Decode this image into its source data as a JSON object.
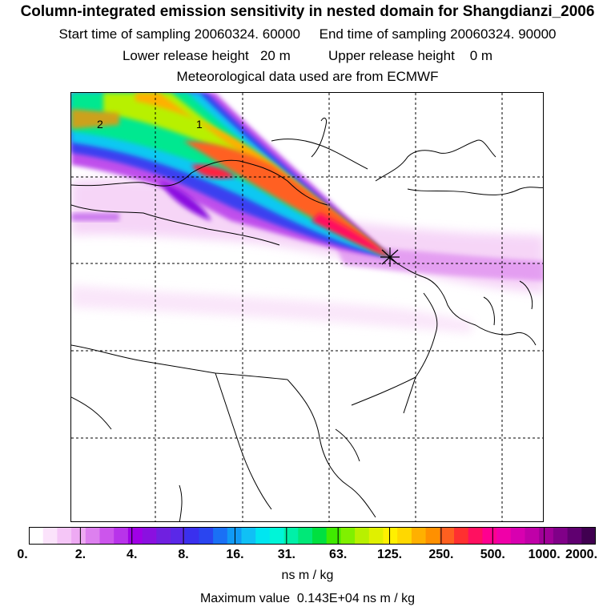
{
  "title": "Column-integrated emission sensitivity in nested domain for Shangdianzi_2006",
  "sampling": {
    "start_label": "Start time of sampling",
    "start_value": "20060324. 60000",
    "end_label": "End time of sampling",
    "end_value": "20060324. 90000"
  },
  "release": {
    "lower_label": "Lower release height",
    "lower_value": "20 m",
    "upper_label": "Upper release height",
    "upper_value": "0 m"
  },
  "met_line": "Meteorological data used are from ECMWF",
  "contour_labels": [
    "2",
    "1"
  ],
  "colorbar": {
    "tick_labels": [
      "0.",
      "2.",
      "4.",
      "8.",
      "16.",
      "31.",
      "63.",
      "125.",
      "250.",
      "500.",
      "1000.",
      "2000."
    ],
    "colors": [
      "#ffffff",
      "#fbe3fb",
      "#f5c6f7",
      "#eeaaf3",
      "#dd80ef",
      "#cc55ec",
      "#b833ea",
      "#a000e6",
      "#8a10e0",
      "#7020e0",
      "#5a28e8",
      "#3a30ee",
      "#2a45f0",
      "#1a70f5",
      "#109af5",
      "#10c0f5",
      "#00e6f0",
      "#00f5d8",
      "#00f0a8",
      "#00e878",
      "#00e040",
      "#40ea00",
      "#80f000",
      "#b8f000",
      "#e0f000",
      "#fff000",
      "#ffd800",
      "#ffb000",
      "#ff9000",
      "#ff6020",
      "#ff3030",
      "#ff1060",
      "#ff0090",
      "#f000a8",
      "#d800b0",
      "#c000a8",
      "#a00098",
      "#800088",
      "#600070",
      "#400050"
    ],
    "units": "ns m / kg"
  },
  "max_value_line": "Maximum value  0.143E+04 ns m / kg",
  "receptor_marker": "receptor-star-icon"
}
